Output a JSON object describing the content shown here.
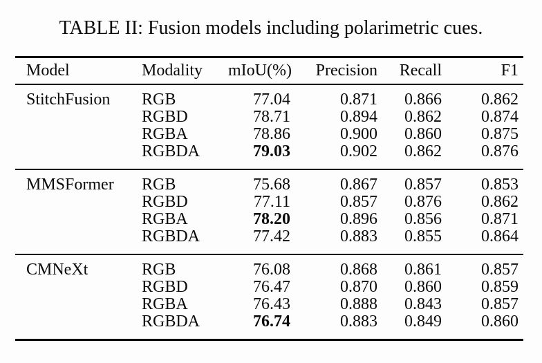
{
  "colors": {
    "background": "#fdfdfd",
    "text": "#0a0a0a",
    "rule": "#000000"
  },
  "caption": "TABLE II: Fusion models including polarimetric cues.",
  "table": {
    "headers": [
      "Model",
      "Modality",
      "mIoU(%)",
      "Precision",
      "Recall",
      "F1"
    ],
    "groups": [
      {
        "model": "StitchFusion",
        "rows": [
          {
            "modality": "RGB",
            "miou": "77.04",
            "precision": "0.871",
            "recall": "0.866",
            "f1": "0.862",
            "miou_bold": false
          },
          {
            "modality": "RGBD",
            "miou": "78.71",
            "precision": "0.894",
            "recall": "0.862",
            "f1": "0.874",
            "miou_bold": false
          },
          {
            "modality": "RGBA",
            "miou": "78.86",
            "precision": "0.900",
            "recall": "0.860",
            "f1": "0.875",
            "miou_bold": false
          },
          {
            "modality": "RGBDA",
            "miou": "79.03",
            "precision": "0.902",
            "recall": "0.862",
            "f1": "0.876",
            "miou_bold": true
          }
        ]
      },
      {
        "model": "MMSFormer",
        "rows": [
          {
            "modality": "RGB",
            "miou": "75.68",
            "precision": "0.867",
            "recall": "0.857",
            "f1": "0.853",
            "miou_bold": false
          },
          {
            "modality": "RGBD",
            "miou": "77.11",
            "precision": "0.857",
            "recall": "0.876",
            "f1": "0.862",
            "miou_bold": false
          },
          {
            "modality": "RGBA",
            "miou": "78.20",
            "precision": "0.896",
            "recall": "0.856",
            "f1": "0.871",
            "miou_bold": true
          },
          {
            "modality": "RGBDA",
            "miou": "77.42",
            "precision": "0.883",
            "recall": "0.855",
            "f1": "0.864",
            "miou_bold": false
          }
        ]
      },
      {
        "model": "CMNeXt",
        "rows": [
          {
            "modality": "RGB",
            "miou": "76.08",
            "precision": "0.868",
            "recall": "0.861",
            "f1": "0.857",
            "miou_bold": false
          },
          {
            "modality": "RGBD",
            "miou": "76.47",
            "precision": "0.870",
            "recall": "0.860",
            "f1": "0.859",
            "miou_bold": false
          },
          {
            "modality": "RGBA",
            "miou": "76.43",
            "precision": "0.888",
            "recall": "0.843",
            "f1": "0.857",
            "miou_bold": false
          },
          {
            "modality": "RGBDA",
            "miou": "76.74",
            "precision": "0.883",
            "recall": "0.849",
            "f1": "0.860",
            "miou_bold": true
          }
        ]
      }
    ]
  }
}
